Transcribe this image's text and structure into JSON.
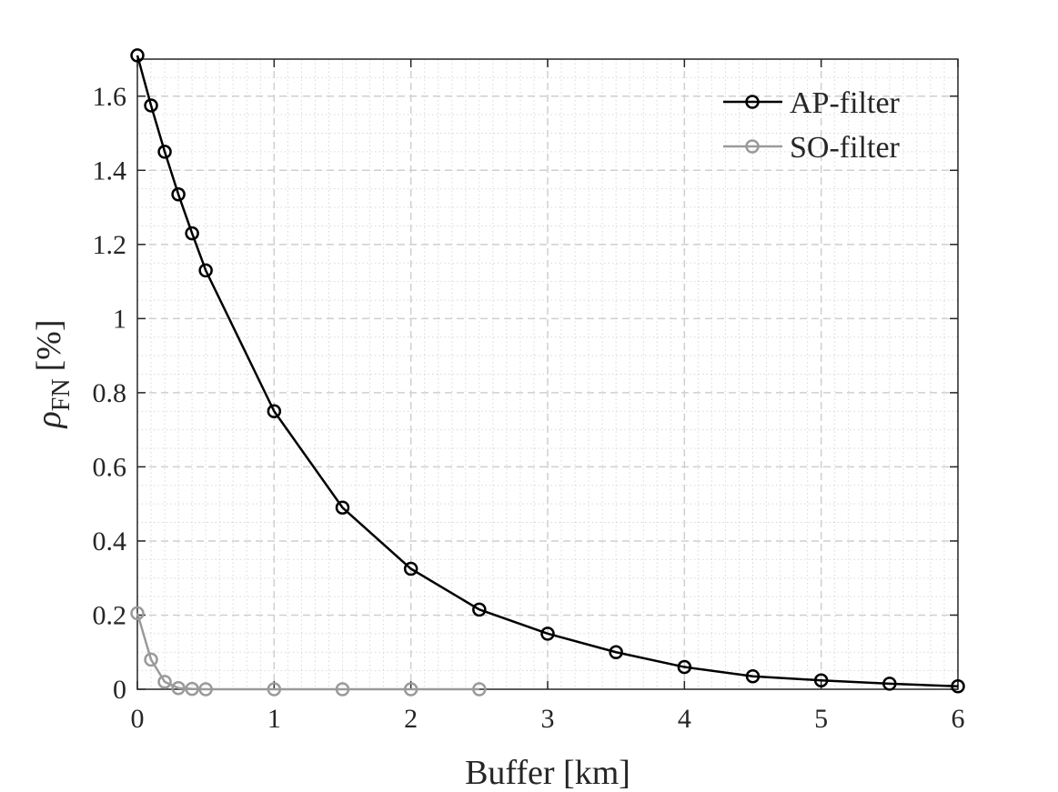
{
  "chart_data": {
    "type": "line",
    "xlabel": "Buffer [km]",
    "ylabel": {
      "symbol": "ρ",
      "subscript": "FN",
      "unit": "[%]"
    },
    "xlim": [
      0,
      6
    ],
    "ylim": [
      0,
      1.7
    ],
    "xticks": [
      0,
      1,
      2,
      3,
      4,
      5,
      6
    ],
    "xtick_labels": [
      "0",
      "1",
      "2",
      "3",
      "4",
      "5",
      "6"
    ],
    "yticks": [
      0,
      0.2,
      0.4,
      0.6,
      0.8,
      1.0,
      1.2,
      1.4,
      1.6
    ],
    "ytick_labels": [
      "0",
      "0.2",
      "0.4",
      "0.6",
      "0.8",
      "1",
      "1.2",
      "1.4",
      "1.6"
    ],
    "grid": true,
    "minor_grid": true,
    "legend_position": "top-right",
    "series": [
      {
        "name": "AP-filter",
        "color": "#000000",
        "marker": "circle-open",
        "x": [
          0,
          0.1,
          0.2,
          0.3,
          0.4,
          0.5,
          1,
          1.5,
          2,
          2.5,
          3,
          3.5,
          4,
          4.5,
          5,
          5.5,
          6
        ],
        "y": [
          1.71,
          1.575,
          1.45,
          1.335,
          1.23,
          1.13,
          0.75,
          0.49,
          0.325,
          0.215,
          0.15,
          0.1,
          0.06,
          0.035,
          0.024,
          0.015,
          0.008
        ]
      },
      {
        "name": "SO-filter",
        "color": "#9a9a9a",
        "marker": "circle-open",
        "x": [
          0,
          0.1,
          0.2,
          0.3,
          0.4,
          0.5,
          1,
          1.5,
          2,
          2.5
        ],
        "y": [
          0.205,
          0.08,
          0.02,
          0.003,
          0.001,
          0.0,
          0.0,
          0.0,
          0.0,
          0.0
        ]
      }
    ]
  }
}
